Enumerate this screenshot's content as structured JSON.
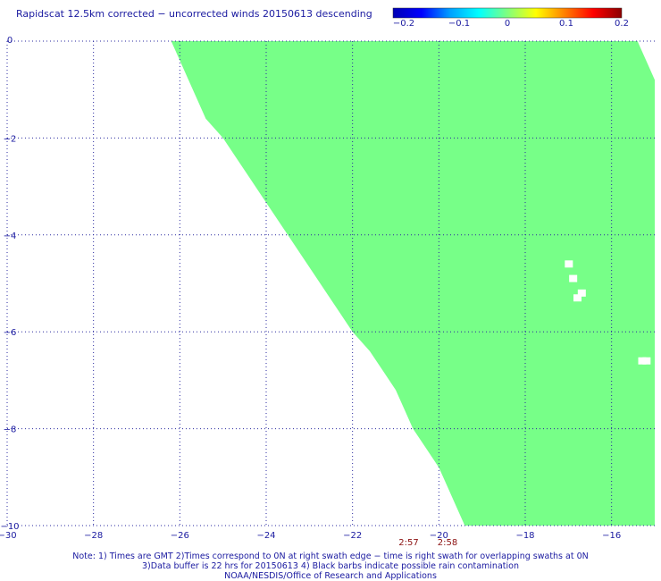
{
  "title": "Rapidscat 12.5km corrected − uncorrected winds 20150613 descending",
  "colorbar": {
    "labels": [
      "−0.2",
      "−0.1",
      "0",
      "0.1",
      "0.2"
    ],
    "stops": [
      "#0000b4",
      "#0000ff",
      "#00a0ff",
      "#00ffff",
      "#7fff7f",
      "#ffff00",
      "#ff8000",
      "#ff0000",
      "#8b0000"
    ]
  },
  "map": {
    "lon_range": [
      -30,
      -15
    ],
    "lat_range": [
      -10,
      0
    ],
    "lon_ticks": [
      "−30",
      "−28",
      "−26",
      "−24",
      "−22",
      "−20",
      "−18",
      "−16"
    ],
    "lat_ticks": [
      "0",
      "−2",
      "−4",
      "−6",
      "−8",
      "−10"
    ],
    "swath_color": "#77ff88",
    "swath_left_edge": [
      [
        0.0,
        -26.2
      ],
      [
        0.4,
        -26.0
      ],
      [
        0.8,
        -25.8
      ],
      [
        1.2,
        -25.6
      ],
      [
        1.6,
        -25.4
      ],
      [
        2.0,
        -25.0
      ],
      [
        2.4,
        -24.7
      ],
      [
        2.8,
        -24.4
      ],
      [
        3.2,
        -24.1
      ],
      [
        3.6,
        -23.8
      ],
      [
        4.0,
        -23.5
      ],
      [
        4.4,
        -23.2
      ],
      [
        4.8,
        -22.9
      ],
      [
        5.2,
        -22.6
      ],
      [
        5.6,
        -22.3
      ],
      [
        6.0,
        -22.0
      ],
      [
        6.4,
        -21.6
      ],
      [
        6.8,
        -21.3
      ],
      [
        7.2,
        -21.0
      ],
      [
        7.6,
        -20.8
      ],
      [
        8.0,
        -20.6
      ],
      [
        8.4,
        -20.3
      ],
      [
        8.8,
        -20.0
      ],
      [
        9.2,
        -19.8
      ],
      [
        9.6,
        -19.6
      ],
      [
        10.0,
        -19.4
      ]
    ],
    "swath_right_edge": [
      [
        0.0,
        -15.4
      ],
      [
        0.4,
        -15.2
      ],
      [
        0.8,
        -15.0
      ],
      [
        2.0,
        -15.0
      ],
      [
        7.0,
        -15.0
      ],
      [
        10.0,
        -15.0
      ]
    ],
    "gaps": [
      [
        -17.0,
        -4.6
      ],
      [
        -16.9,
        -4.9
      ],
      [
        -16.7,
        -5.2
      ],
      [
        -16.8,
        -5.3
      ],
      [
        -15.3,
        -6.6
      ],
      [
        -15.2,
        -6.6
      ]
    ],
    "swath_times": [
      "2:57",
      "2:58"
    ]
  },
  "notes": [
    "Note: 1) Times are GMT 2)Times correspond to 0N at right swath edge − time is right swath for overlapping swaths at 0N",
    "3)Data buffer is 22 hrs for 20150613 4) Black barbs indicate possible rain contamination",
    "NOAA/NESDIS/Office of Research and Applications"
  ]
}
